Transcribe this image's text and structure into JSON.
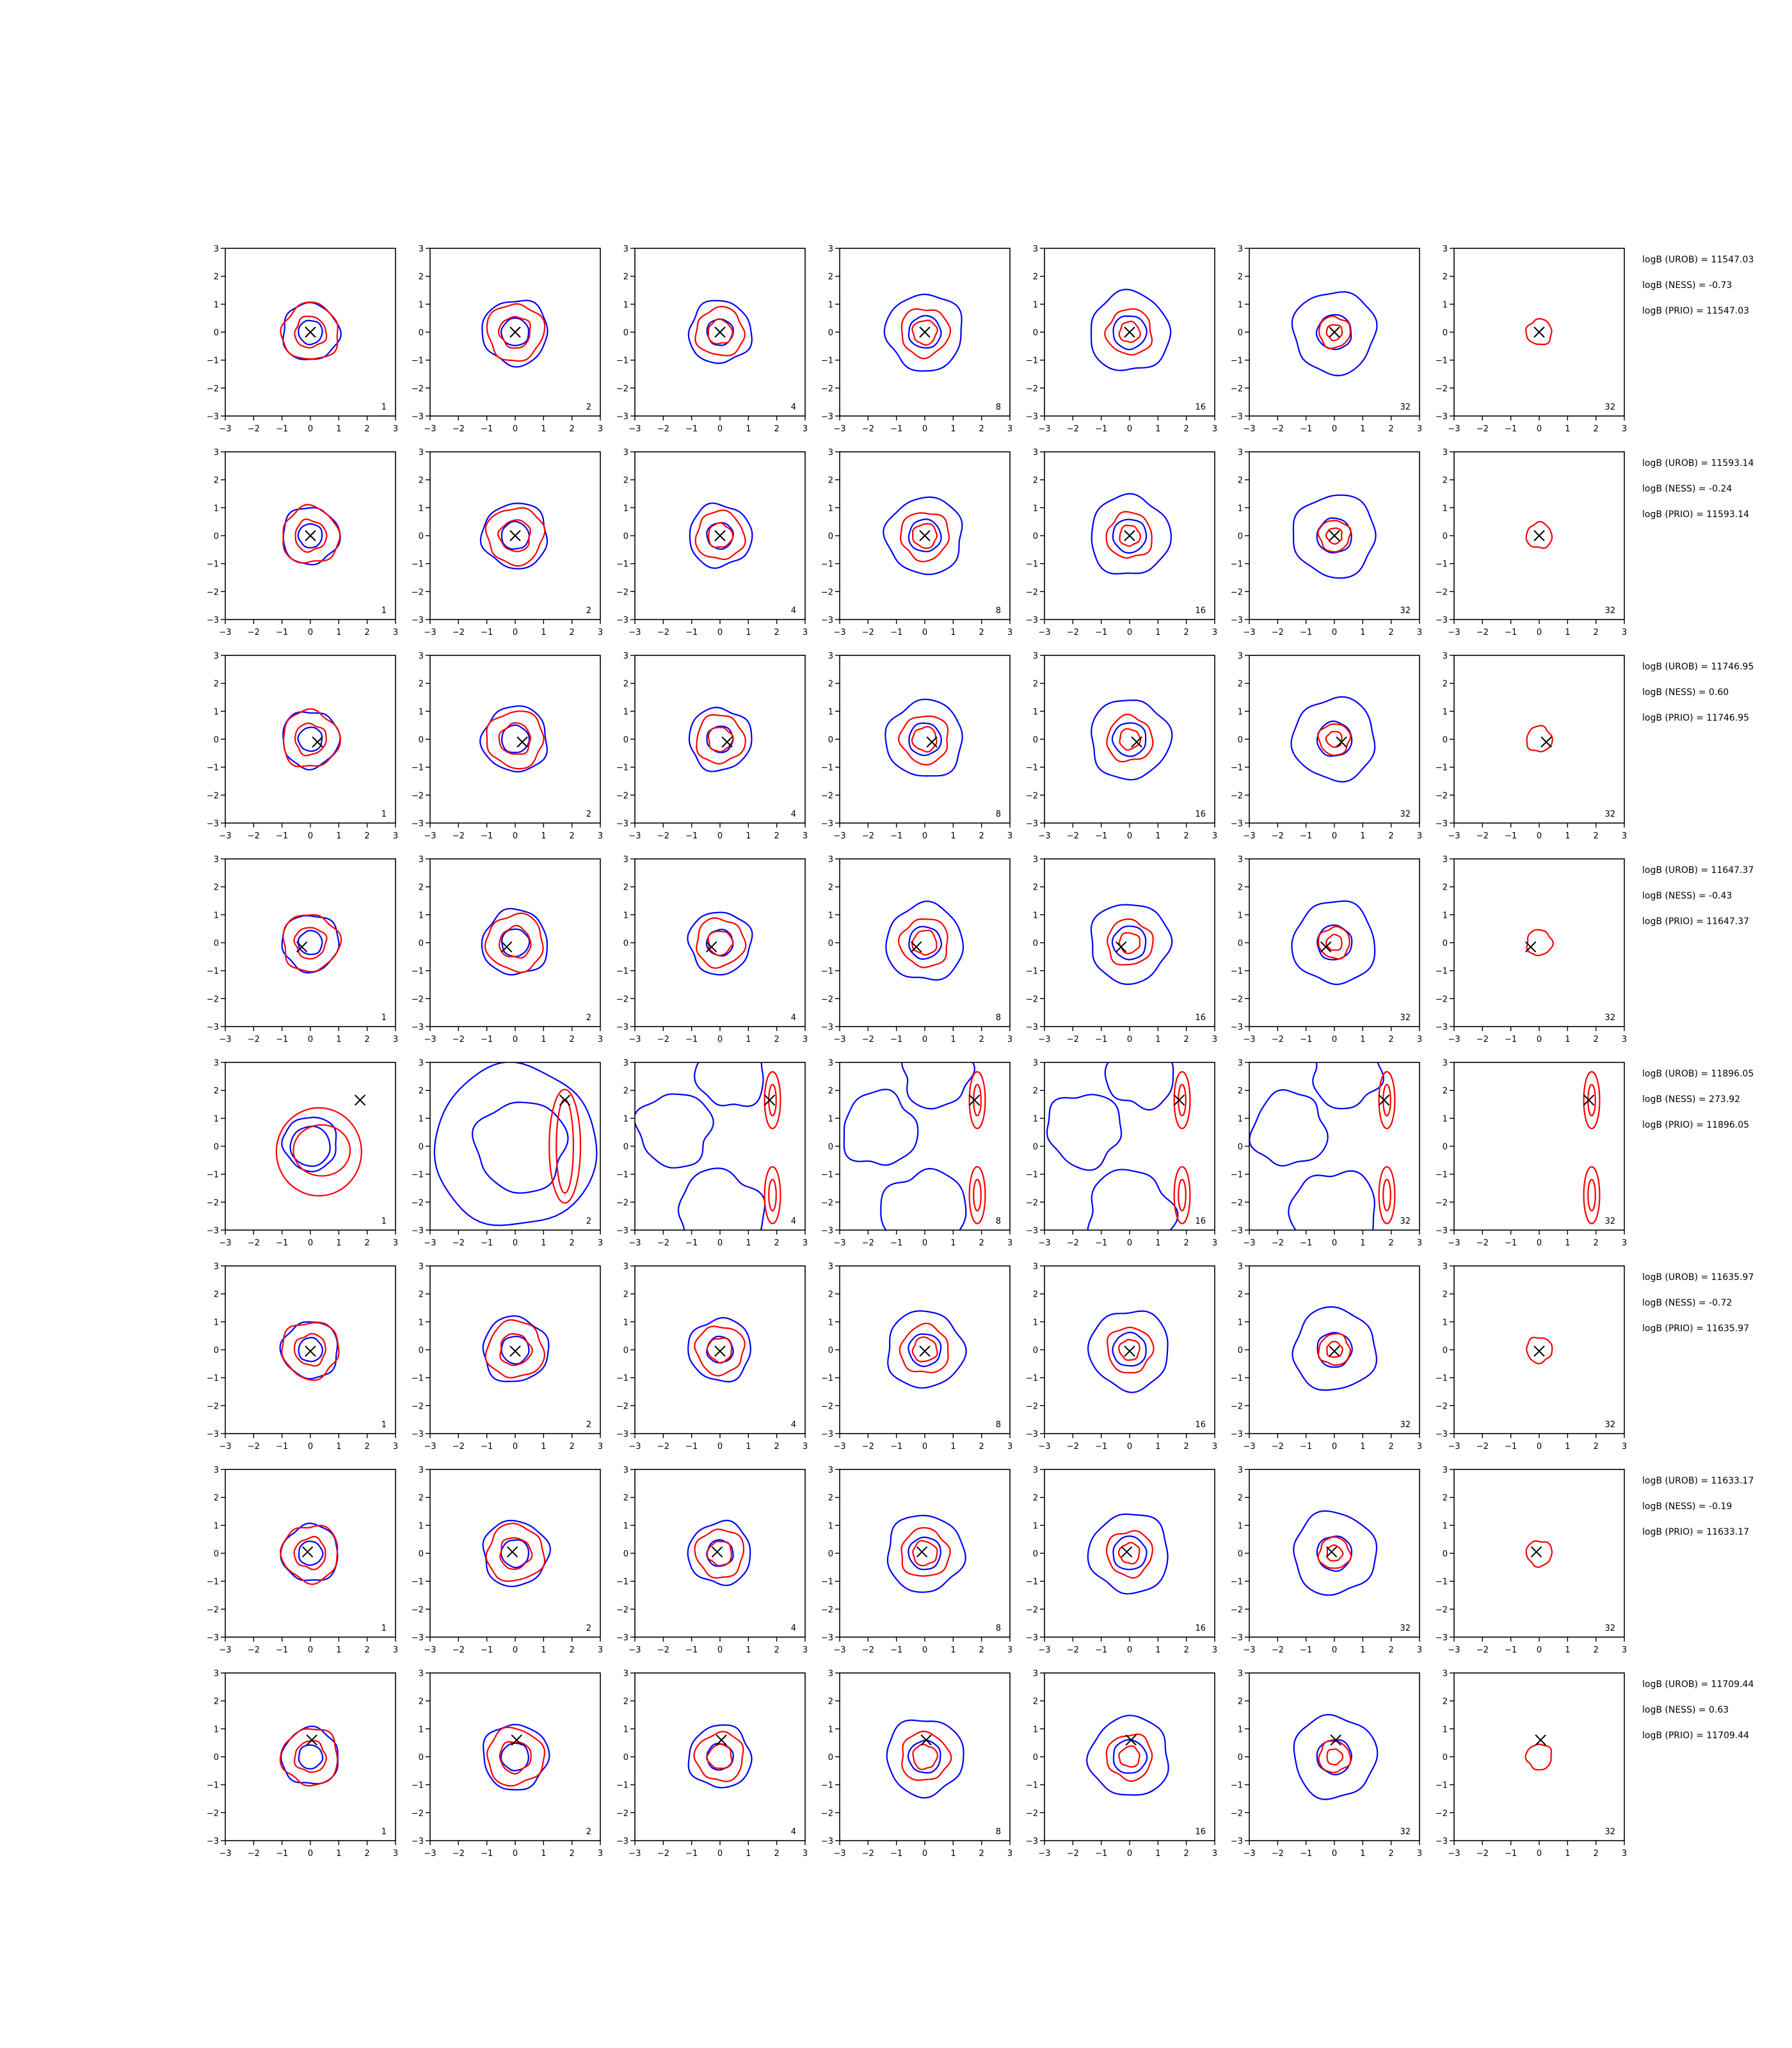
{
  "colors": {
    "blue": "#0000ff",
    "red": "#ff0000",
    "marker": "#000000",
    "axis": "#000000"
  },
  "chart_data": {
    "type": "contour-grid",
    "xlim": [
      -3,
      3
    ],
    "ylim": [
      -3,
      3
    ],
    "ticks": [
      "−3",
      "−2",
      "−1",
      "0",
      "1",
      "2",
      "3"
    ],
    "columns": [
      {
        "label": "1",
        "blue_scale": 1.0,
        "red_scale": 1.0,
        "blue_r": 1.0,
        "red_r": [
          1.0,
          0.55
        ]
      },
      {
        "label": "2",
        "blue_scale": 1.15,
        "red_scale": 1.0,
        "blue_r": 1.0,
        "red_r": [
          1.0,
          0.55
        ]
      },
      {
        "label": "4",
        "blue_scale": 1.1,
        "red_scale": 0.85,
        "blue_r": 1.0,
        "red_r": [
          1.0,
          0.5
        ]
      },
      {
        "label": "8",
        "blue_scale": 1.35,
        "red_scale": 0.85,
        "blue_r": 1.0,
        "red_r": [
          1.0,
          0.5
        ]
      },
      {
        "label": "16",
        "blue_scale": 1.4,
        "red_scale": 0.8,
        "blue_r": 1.0,
        "red_r": [
          1.0,
          0.45
        ]
      },
      {
        "label": "32",
        "blue_scale": 1.45,
        "red_scale": 0.55,
        "blue_r": 1.0,
        "red_r": [
          1.0,
          0.5
        ]
      },
      {
        "label": "32",
        "blue_scale": 0.0,
        "red_scale": 0.45,
        "blue_r": 0.0,
        "red_r": [
          1.0
        ]
      }
    ],
    "rows": [
      {
        "marker": [
          0.0,
          0.0
        ],
        "annotations": [
          "logB (UROB) = 11547.03",
          "logB (NESS) = -0.73",
          "logB (PRIO) = 11547.03"
        ]
      },
      {
        "marker": [
          0.0,
          0.0
        ],
        "annotations": [
          "logB (UROB) = 11593.14",
          "logB (NESS) = -0.24",
          "logB (PRIO) = 11593.14"
        ]
      },
      {
        "marker": [
          0.25,
          -0.1
        ],
        "annotations": [
          "logB (UROB) = 11746.95",
          "logB (NESS) = 0.60",
          "logB (PRIO) = 11746.95"
        ]
      },
      {
        "marker": [
          -0.3,
          -0.15
        ],
        "annotations": [
          "logB (UROB) = 11647.37",
          "logB (NESS) = -0.43",
          "logB (PRIO) = 11647.37"
        ]
      },
      {
        "marker": [
          1.75,
          1.65
        ],
        "annotations": [
          "logB (UROB) = 11896.05",
          "logB (NESS) = 273.92",
          "logB (PRIO) = 11896.05"
        ]
      },
      {
        "marker": [
          0.0,
          -0.05
        ],
        "annotations": [
          "logB (UROB) = 11635.97",
          "logB (NESS) = -0.72",
          "logB (PRIO) = 11635.97"
        ]
      },
      {
        "marker": [
          -0.1,
          0.05
        ],
        "annotations": [
          "logB (UROB) = 11633.17",
          "logB (NESS) = -0.19",
          "logB (PRIO) = 11633.17"
        ]
      },
      {
        "marker": [
          0.05,
          0.6
        ],
        "annotations": [
          "logB (UROB) = 11709.44",
          "logB (NESS) = 0.63",
          "logB (PRIO) = 11709.44"
        ]
      }
    ]
  }
}
